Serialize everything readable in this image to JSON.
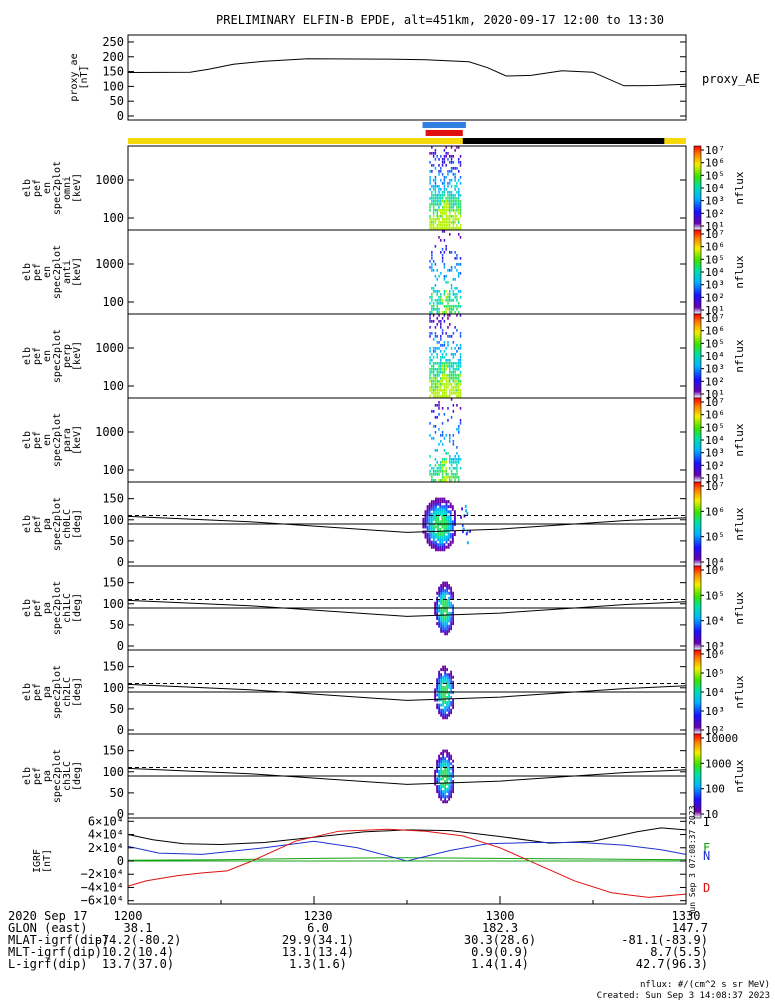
{
  "title": "PRELIMINARY ELFIN-B EPDE, alt=451km, 2020-09-17 12:00 to 13:30",
  "created": "Created: Sun Sep  3 14:08:37 2023",
  "nflux_units": "nflux: #/(cm^2 s sr MeV)",
  "vertical_stamp": "Sun Sep 3 07:08:37 2023",
  "colors": {
    "sunlight_bar": "#f5d90a",
    "shadow_bar": "#000000",
    "fast_mode_blue": "#2f7fe0",
    "fast_mode_red": "#e01010",
    "bx_line": "#000000",
    "by_line": "#2030d0",
    "bz_line": "#10a010",
    "bd_line": "#e01010"
  },
  "ae_panel": {
    "ylabel_lines": [
      "proxy_ae",
      "[nT]"
    ],
    "right_label": "proxy_AE",
    "yticks": [
      "250",
      "200",
      "150",
      "100",
      "50",
      "0"
    ]
  },
  "spec_panels": [
    {
      "ylabel_lines": [
        "elb",
        "pef",
        "en",
        "spec2plot",
        "omni",
        "[keV]"
      ],
      "yticks": [
        "1000",
        "100"
      ]
    },
    {
      "ylabel_lines": [
        "elb",
        "pef",
        "en",
        "spec2plot",
        "anti",
        "[keV]"
      ],
      "yticks": [
        "1000",
        "100"
      ]
    },
    {
      "ylabel_lines": [
        "elb",
        "pef",
        "en",
        "spec2plot",
        "perp",
        "[keV]"
      ],
      "yticks": [
        "1000",
        "100"
      ]
    },
    {
      "ylabel_lines": [
        "elb",
        "pef",
        "en",
        "spec2plot",
        "para",
        "[keV]"
      ],
      "yticks": [
        "1000",
        "100"
      ]
    }
  ],
  "pa_panels": [
    {
      "ylabel_lines": [
        "elb",
        "pef",
        "pa",
        "spec2plot",
        "ch0LC",
        "[deg]"
      ],
      "yticks": [
        "150",
        "100",
        "50",
        "0"
      ]
    },
    {
      "ylabel_lines": [
        "elb",
        "pef",
        "pa",
        "spec2plot",
        "ch1LC",
        "[deg]"
      ],
      "yticks": [
        "150",
        "100",
        "50",
        "0"
      ]
    },
    {
      "ylabel_lines": [
        "elb",
        "pef",
        "pa",
        "spec2plot",
        "ch2LC",
        "[deg]"
      ],
      "yticks": [
        "150",
        "100",
        "50",
        "0"
      ]
    },
    {
      "ylabel_lines": [
        "elb",
        "pef",
        "pa",
        "spec2plot",
        "ch3LC",
        "[deg]"
      ],
      "yticks": [
        "150",
        "100",
        "50",
        "0"
      ]
    }
  ],
  "colorbars": [
    {
      "label": "nflux",
      "ticks": [
        "10⁷",
        "10⁶",
        "10⁵",
        "10⁴",
        "10³",
        "10²",
        "10¹"
      ]
    },
    {
      "label": "nflux",
      "ticks": [
        "10⁷",
        "10⁶",
        "10⁵",
        "10⁴",
        "10³",
        "10²",
        "10¹"
      ]
    },
    {
      "label": "nflux",
      "ticks": [
        "10⁷",
        "10⁶",
        "10⁵",
        "10⁴",
        "10³",
        "10²",
        "10¹"
      ]
    },
    {
      "label": "nflux",
      "ticks": [
        "10⁷",
        "10⁶",
        "10⁵",
        "10⁴",
        "10³",
        "10²",
        "10¹"
      ]
    },
    {
      "label": "nflux",
      "ticks": [
        "10⁷",
        "10⁶",
        "10⁵",
        "10⁴"
      ]
    },
    {
      "label": "nflux",
      "ticks": [
        "10⁶",
        "10⁵",
        "10⁴",
        "10³"
      ]
    },
    {
      "label": "nflux",
      "ticks": [
        "10⁶",
        "10⁵",
        "10⁴",
        "10³",
        "10²"
      ]
    },
    {
      "label": "nflux",
      "ticks": [
        "10000",
        "1000",
        "100",
        "10"
      ]
    }
  ],
  "igrf_panel": {
    "ylabel_lines": [
      "IGRF",
      "[nT]"
    ],
    "yticks": [
      "6×10⁴",
      "4×10⁴",
      "2×10⁴",
      "0",
      "−2×10⁴",
      "−4×10⁴",
      "−6×10⁴"
    ],
    "legend": [
      "I",
      "F",
      "N",
      "D"
    ]
  },
  "footer": {
    "row_labels": [
      "2020 Sep 17",
      "GLON (east)",
      "MLAT-igrf(dip)",
      "MLT-igrf(dip)",
      "L-igrf(dip)"
    ],
    "columns": [
      {
        "time": "1200",
        "values": [
          "38.1",
          "-74.2(-80.2)",
          "10.2(10.4)",
          "13.7(37.0)"
        ]
      },
      {
        "time": "1230",
        "values": [
          "6.0",
          "29.9(34.1)",
          "13.1(13.4)",
          "1.3(1.6)"
        ]
      },
      {
        "time": "1300",
        "values": [
          "182.3",
          "30.3(28.6)",
          "0.9(0.9)",
          "1.4(1.4)"
        ]
      },
      {
        "time": "1330",
        "values": [
          "147.7",
          "-81.1(-83.9)",
          "8.7(5.5)",
          "42.7(96.3)"
        ]
      }
    ]
  },
  "chart_data": [
    {
      "type": "line",
      "title": "PRELIMINARY ELFIN-B EPDE, alt=451km, 2020-09-17 12:00 to 13:30",
      "ylabel": "proxy_ae [nT]",
      "ylim": [
        0,
        260
      ],
      "xlim": [
        0,
        90
      ],
      "x_units": "minutes after 12:00 UT",
      "series": [
        {
          "name": "proxy_AE",
          "x": [
            0,
            10,
            13,
            17,
            22,
            29,
            42,
            48,
            55,
            58,
            61,
            65,
            70,
            75,
            80,
            85,
            90
          ],
          "y": [
            147,
            148,
            158,
            175,
            185,
            193,
            192,
            190,
            183,
            163,
            135,
            137,
            153,
            148,
            102,
            103,
            107
          ]
        }
      ]
    },
    {
      "type": "line",
      "ylabel": "IGRF [nT]",
      "ylim": [
        -65000,
        65000
      ],
      "xlim": [
        0,
        90
      ],
      "x_units": "minutes after 12:00 UT",
      "legend": [
        "I",
        "F",
        "N",
        "D"
      ],
      "series": [
        {
          "name": "I",
          "x": [
            0,
            4,
            9,
            15,
            22,
            30,
            38,
            45,
            52,
            60,
            68,
            75,
            82,
            86,
            90
          ],
          "y": [
            40000,
            32000,
            26000,
            25000,
            28000,
            36000,
            44000,
            47000,
            46000,
            37000,
            27000,
            30000,
            44000,
            50000,
            47000
          ]
        },
        {
          "name": "F",
          "x": [
            0,
            15,
            30,
            45,
            60,
            75,
            90
          ],
          "y": [
            1000,
            2000,
            4000,
            5000,
            4000,
            3000,
            2000
          ]
        },
        {
          "name": "N",
          "x": [
            0,
            5,
            12,
            22,
            30,
            37,
            45,
            52,
            58,
            65,
            73,
            80,
            86,
            90
          ],
          "y": [
            22000,
            12000,
            10000,
            20000,
            30000,
            20000,
            0,
            16000,
            26000,
            28000,
            28000,
            24000,
            17000,
            10000
          ]
        },
        {
          "name": "D",
          "x": [
            0,
            3,
            8,
            12,
            16,
            20,
            27,
            34,
            42,
            48,
            54,
            60,
            66,
            72,
            78,
            84,
            90
          ],
          "y": [
            -38000,
            -30000,
            -22000,
            -18000,
            -15000,
            0,
            30000,
            45000,
            48000,
            45000,
            38000,
            20000,
            -5000,
            -30000,
            -48000,
            -55000,
            -50000
          ]
        }
      ]
    },
    {
      "type": "heatmap",
      "ylabel": "energy [keV]",
      "note": "electron energy spectrograms (omni, anti, perp, para) and pitch-angle spectrograms (ch0LC..ch3LC); flux present only near 12:48-12:55 UT",
      "active_x_range": [
        48,
        55
      ],
      "pitch_angle_ylim": [
        0,
        180
      ],
      "loss_cone_dashed_deg": 110,
      "loss_cone_solid_deg_at_pass": 70,
      "pa_90_deg_reference": 90
    }
  ]
}
